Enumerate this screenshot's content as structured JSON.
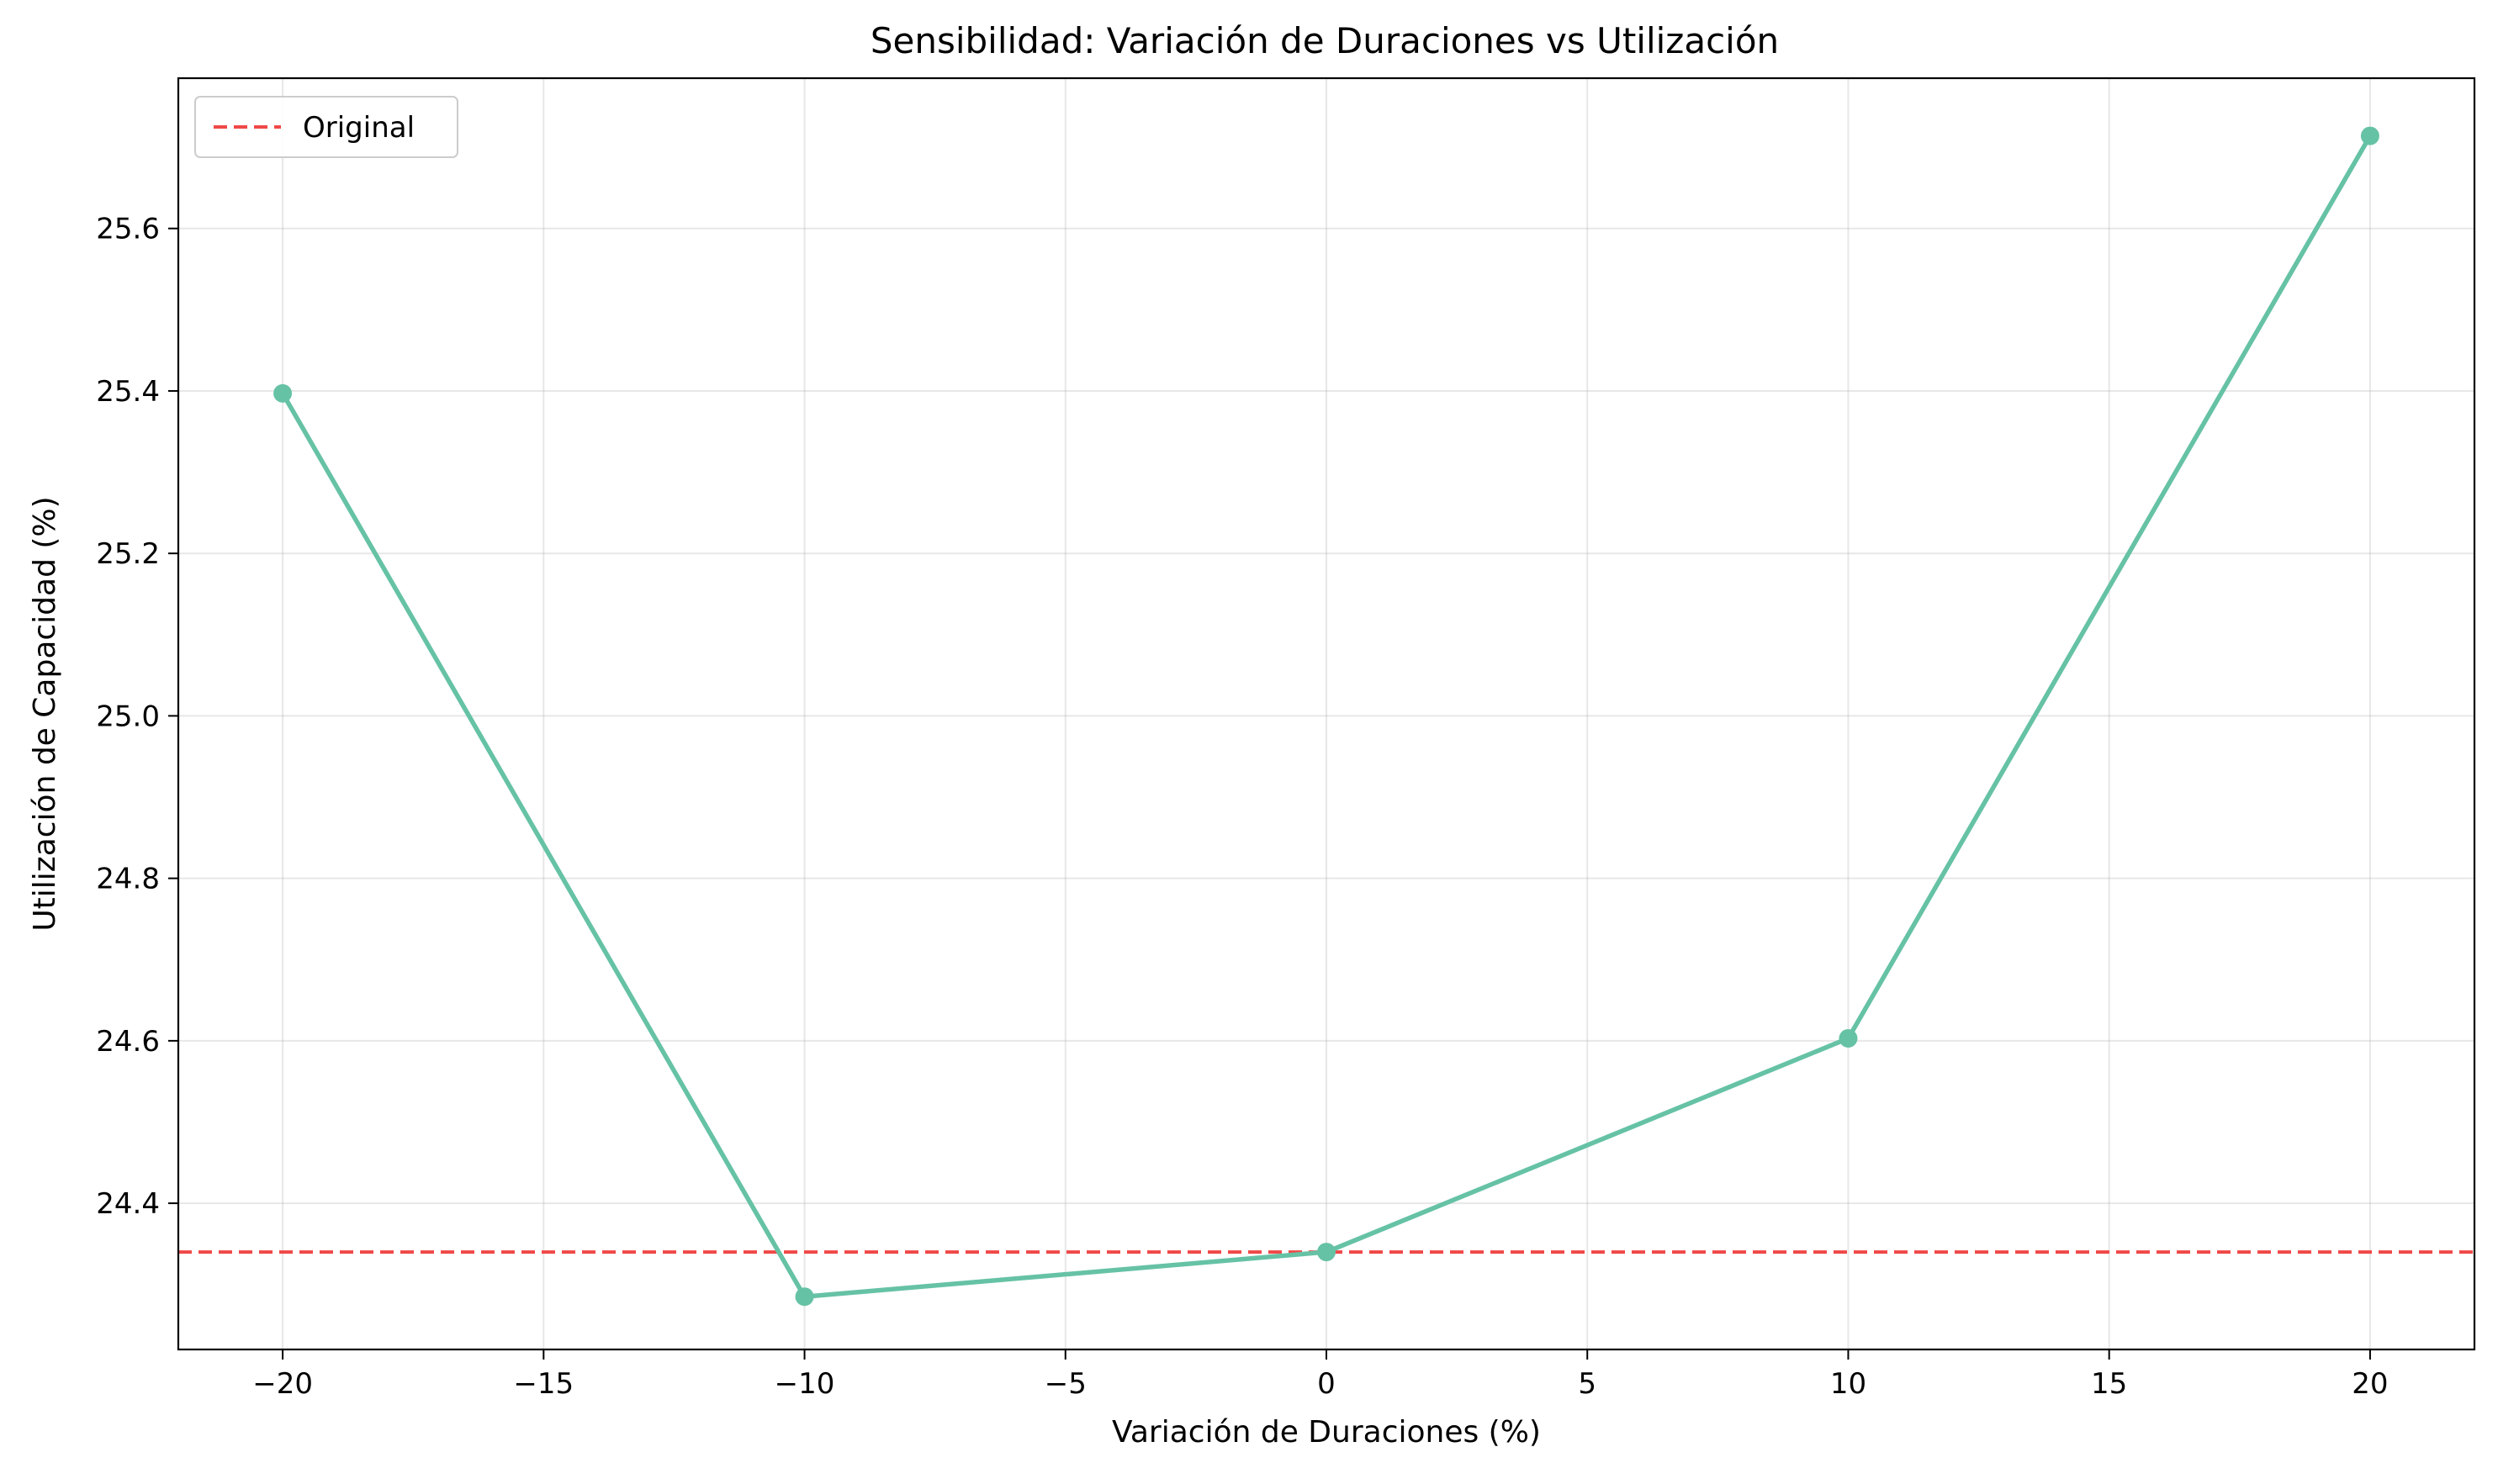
{
  "chart_data": {
    "type": "line",
    "title": "Sensibilidad: Variación de Duraciones vs Utilización",
    "xlabel": "Variación de Duraciones (%)",
    "ylabel": "Utilización de Capacidad (%)",
    "xlim": [
      -22,
      22
    ],
    "ylim": [
      24.22,
      25.785
    ],
    "xticks": [
      -20,
      -15,
      -10,
      -5,
      0,
      5,
      10,
      15,
      20
    ],
    "xtick_labels": [
      "−20",
      "−15",
      "−10",
      "−5",
      "0",
      "5",
      "10",
      "15",
      "20"
    ],
    "yticks": [
      24.4,
      24.6,
      24.8,
      25.0,
      25.2,
      25.4,
      25.6
    ],
    "ytick_labels": [
      "24.4",
      "24.6",
      "24.8",
      "25.0",
      "25.2",
      "25.4",
      "25.6"
    ],
    "grid": true,
    "legend_position": "top-left",
    "series": [
      {
        "x": [
          -20,
          -10,
          0,
          10,
          20
        ],
        "y": [
          25.397,
          24.285,
          24.34,
          24.603,
          25.714
        ],
        "color": "#66c2a5",
        "marker": "circle"
      }
    ],
    "reference_lines": [
      {
        "name": "Original",
        "orientation": "horizontal",
        "value": 24.34,
        "color": "#f04848",
        "style": "dashed"
      }
    ]
  }
}
